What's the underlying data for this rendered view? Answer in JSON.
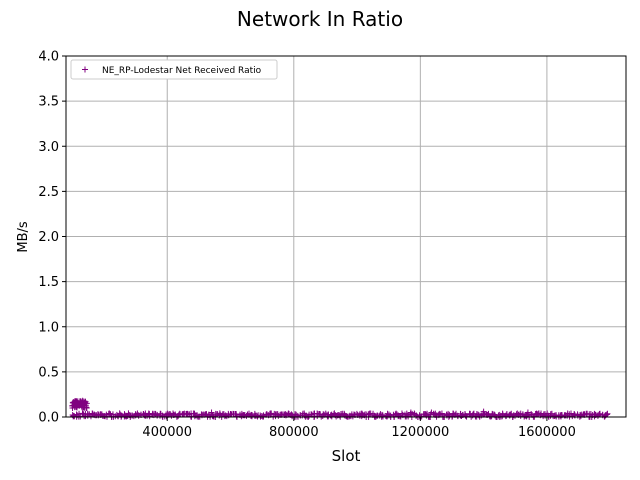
{
  "chart_data": {
    "type": "scatter",
    "title": "Network In Ratio",
    "xlabel": "Slot",
    "ylabel": "MB/s",
    "xlim": [
      80000,
      1850000
    ],
    "ylim": [
      0,
      4.0
    ],
    "xticks": [
      400000,
      800000,
      1200000,
      1600000
    ],
    "xtick_labels": [
      "400000",
      "800000",
      "1200000",
      "1600000"
    ],
    "yticks": [
      0.0,
      0.5,
      1.0,
      1.5,
      2.0,
      2.5,
      3.0,
      3.5,
      4.0
    ],
    "ytick_labels": [
      "0.0",
      "0.5",
      "1.0",
      "1.5",
      "2.0",
      "2.5",
      "3.0",
      "3.5",
      "4.0"
    ],
    "grid": true,
    "legend": {
      "position": "top-left"
    },
    "series": [
      {
        "name": "NE_RP-Lodestar Net Received Ratio",
        "marker": "+",
        "color": "#800080",
        "segments": [
          {
            "x_range": [
              100000,
              145000
            ],
            "y_min": 0.1,
            "y_max": 0.18,
            "step": 1500
          },
          {
            "x_range": [
              100000,
              1795000
            ],
            "y_min": 0.0,
            "y_max": 0.04,
            "step": 6000
          }
        ],
        "spikes": [
          {
            "x": 540000,
            "y": 0.05
          },
          {
            "x": 1170000,
            "y": 0.05
          },
          {
            "x": 1235000,
            "y": 0.05
          },
          {
            "x": 1400000,
            "y": 0.06
          },
          {
            "x": 1540000,
            "y": 0.05
          }
        ]
      }
    ]
  }
}
